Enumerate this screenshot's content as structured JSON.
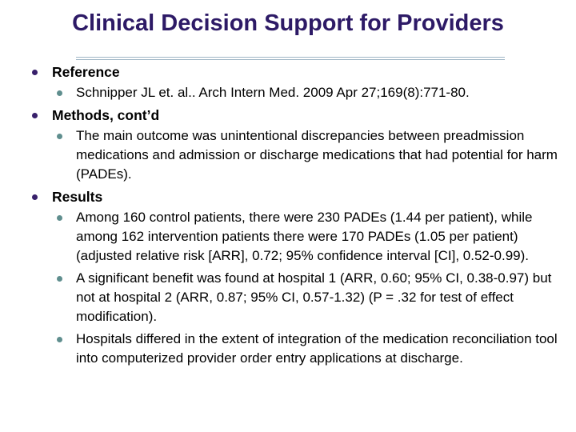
{
  "slide": {
    "title": "Clinical Decision Support for Providers",
    "colors": {
      "background": "#ffffff",
      "title": "#2d1a66",
      "bullet_l1": "#38206b",
      "bullet_l2": "#5f8e8e",
      "rule": "#9fb6c6",
      "body_text": "#000000"
    },
    "bullets": [
      {
        "level": 1,
        "text": "Reference"
      },
      {
        "level": 2,
        "text": "Schnipper JL et. al.. Arch Intern Med. 2009 Apr 27;169(8):771-80."
      },
      {
        "level": 1,
        "text": "Methods, cont’d"
      },
      {
        "level": 2,
        "text": "The main outcome was unintentional discrepancies between preadmission medications and admission or discharge medications that had potential for harm (PADEs)."
      },
      {
        "level": 1,
        "text": "Results"
      },
      {
        "level": 2,
        "text": "Among 160 control patients, there were 230 PADEs (1.44 per patient), while among 162 intervention patients there were 170 PADEs (1.05 per patient) (adjusted relative risk [ARR], 0.72; 95% confidence interval [CI], 0.52-0.99)."
      },
      {
        "level": 2,
        "text": "A significant benefit was found at hospital 1 (ARR, 0.60; 95% CI, 0.38-0.97) but not at hospital 2 (ARR, 0.87; 95% CI, 0.57-1.32) (P = .32 for test of effect modification)."
      },
      {
        "level": 2,
        "text": "Hospitals differed in the extent of integration of the medication reconciliation tool into computerized provider order entry applications at discharge."
      }
    ]
  }
}
